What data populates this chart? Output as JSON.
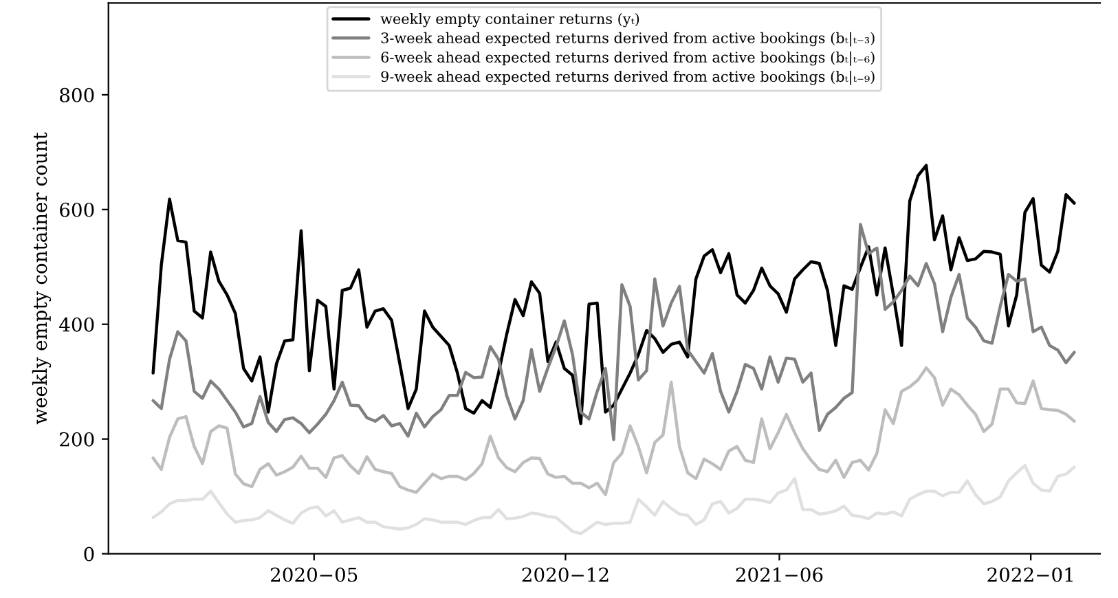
{
  "chart_data": {
    "type": "line",
    "ylabel": "weekly empty container count",
    "x": [
      "2019-12-16",
      "2019-12-23",
      "2019-12-30",
      "2020-01-06",
      "2020-01-13",
      "2020-01-20",
      "2020-01-27",
      "2020-02-03",
      "2020-02-10",
      "2020-02-17",
      "2020-02-24",
      "2020-03-02",
      "2020-03-09",
      "2020-03-16",
      "2020-03-23",
      "2020-03-30",
      "2020-04-06",
      "2020-04-13",
      "2020-04-20",
      "2020-04-27",
      "2020-05-04",
      "2020-05-11",
      "2020-05-18",
      "2020-05-25",
      "2020-06-01",
      "2020-06-08",
      "2020-06-15",
      "2020-06-22",
      "2020-06-29",
      "2020-07-06",
      "2020-07-13",
      "2020-07-20",
      "2020-07-27",
      "2020-08-03",
      "2020-08-10",
      "2020-08-17",
      "2020-08-24",
      "2020-08-31",
      "2020-09-07",
      "2020-09-14",
      "2020-09-21",
      "2020-09-28",
      "2020-10-05",
      "2020-10-12",
      "2020-10-19",
      "2020-10-26",
      "2020-11-02",
      "2020-11-09",
      "2020-11-16",
      "2020-11-23",
      "2020-11-30",
      "2020-12-07",
      "2020-12-14",
      "2020-12-21",
      "2020-12-28",
      "2021-01-04",
      "2021-01-11",
      "2021-01-18",
      "2021-01-25",
      "2021-02-01",
      "2021-02-08",
      "2021-02-15",
      "2021-02-22",
      "2021-03-01",
      "2021-03-08",
      "2021-03-15",
      "2021-03-22",
      "2021-03-29",
      "2021-04-05",
      "2021-04-12",
      "2021-04-19",
      "2021-04-26",
      "2021-05-03",
      "2021-05-10",
      "2021-05-17",
      "2021-05-24",
      "2021-05-31",
      "2021-06-07",
      "2021-06-14",
      "2021-06-21",
      "2021-06-28",
      "2021-07-05",
      "2021-07-12",
      "2021-07-19",
      "2021-07-26",
      "2021-08-02",
      "2021-08-09",
      "2021-08-16",
      "2021-08-23",
      "2021-08-30",
      "2021-09-06",
      "2021-09-13",
      "2021-09-20",
      "2021-09-27",
      "2021-10-04",
      "2021-10-11",
      "2021-10-18",
      "2021-10-25",
      "2021-11-01",
      "2021-11-08",
      "2021-11-15",
      "2021-11-22",
      "2021-11-29",
      "2021-12-06",
      "2021-12-13",
      "2021-12-20",
      "2021-12-27",
      "2022-01-03",
      "2022-01-10",
      "2022-01-17",
      "2022-01-24",
      "2022-01-31",
      "2022-02-07"
    ],
    "series": [
      {
        "name": "weekly empty container returns (yₜ)",
        "color": "#000000",
        "values": [
          315,
          503,
          618,
          546,
          543,
          423,
          411,
          526,
          475,
          451,
          419,
          323,
          301,
          343,
          247,
          331,
          371,
          373,
          563,
          319,
          442,
          431,
          287,
          459,
          463,
          495,
          395,
          423,
          427,
          407,
          331,
          253,
          287,
          423,
          395,
          379,
          363,
          315,
          253,
          245,
          267,
          255,
          315,
          383,
          443,
          415,
          474,
          454,
          335,
          369,
          323,
          311,
          227,
          435,
          437,
          247,
          259,
          287,
          315,
          347,
          389,
          375,
          351,
          365,
          369,
          343,
          479,
          519,
          530,
          490,
          523,
          451,
          437,
          459,
          498,
          467,
          453,
          421,
          479,
          495,
          509,
          506,
          459,
          363,
          467,
          461,
          499,
          535,
          451,
          533,
          451,
          363,
          615,
          659,
          677,
          547,
          589,
          495,
          551,
          511,
          514,
          527,
          526,
          522,
          397,
          451,
          595,
          619,
          503,
          491,
          527,
          626,
          611
        ]
      },
      {
        "name": "3-week ahead expected returns derived from active bookings (bₜ|ₜ₋₃)",
        "color": "#808080",
        "values": [
          267,
          253,
          339,
          387,
          371,
          283,
          271,
          301,
          287,
          267,
          247,
          221,
          227,
          274,
          229,
          213,
          234,
          237,
          227,
          211,
          226,
          243,
          267,
          299,
          259,
          258,
          237,
          231,
          241,
          223,
          227,
          205,
          245,
          221,
          239,
          251,
          276,
          276,
          316,
          307,
          308,
          361,
          339,
          275,
          235,
          267,
          356,
          283,
          324,
          361,
          406,
          347,
          247,
          235,
          283,
          323,
          199,
          469,
          431,
          303,
          319,
          479,
          397,
          437,
          466,
          355,
          335,
          315,
          349,
          283,
          247,
          283,
          330,
          323,
          287,
          343,
          299,
          341,
          339,
          299,
          315,
          215,
          243,
          255,
          271,
          281,
          574,
          523,
          533,
          426,
          439,
          459,
          484,
          467,
          506,
          471,
          387,
          447,
          487,
          411,
          395,
          371,
          367,
          431,
          487,
          475,
          479,
          387,
          395,
          363,
          355,
          333,
          351
        ]
      },
      {
        "name": "6-week ahead expected returns derived from active bookings (bₜ|ₜ₋₆)",
        "color": "#bdbdbd",
        "values": [
          167,
          147,
          203,
          235,
          239,
          187,
          157,
          213,
          223,
          219,
          139,
          122,
          117,
          147,
          157,
          137,
          143,
          151,
          170,
          149,
          149,
          133,
          167,
          171,
          153,
          140,
          169,
          147,
          143,
          140,
          117,
          111,
          107,
          123,
          139,
          131,
          135,
          135,
          129,
          140,
          157,
          205,
          167,
          150,
          143,
          159,
          167,
          166,
          139,
          133,
          135,
          123,
          123,
          115,
          123,
          103,
          159,
          175,
          223,
          187,
          141,
          194,
          207,
          299,
          187,
          141,
          131,
          165,
          157,
          147,
          179,
          187,
          163,
          159,
          235,
          183,
          211,
          243,
          211,
          183,
          163,
          147,
          143,
          163,
          133,
          159,
          163,
          146,
          175,
          251,
          227,
          283,
          291,
          303,
          324,
          307,
          259,
          287,
          277,
          259,
          243,
          213,
          226,
          287,
          287,
          263,
          262,
          301,
          253,
          251,
          250,
          243,
          231
        ]
      },
      {
        "name": "9-week ahead expected returns derived from active bookings (bₜ|ₜ₋₉)",
        "color": "#e0e0e0",
        "values": [
          63,
          73,
          87,
          93,
          93,
          95,
          95,
          109,
          89,
          69,
          55,
          58,
          59,
          63,
          75,
          67,
          59,
          53,
          71,
          79,
          82,
          66,
          75,
          55,
          59,
          63,
          55,
          55,
          47,
          45,
          43,
          45,
          51,
          61,
          59,
          55,
          55,
          55,
          51,
          58,
          63,
          63,
          77,
          61,
          62,
          65,
          71,
          69,
          65,
          63,
          51,
          39,
          35,
          45,
          55,
          51,
          53,
          53,
          55,
          95,
          82,
          67,
          91,
          79,
          69,
          67,
          51,
          59,
          87,
          91,
          71,
          79,
          95,
          95,
          93,
          89,
          106,
          111,
          131,
          77,
          77,
          69,
          71,
          75,
          83,
          67,
          65,
          61,
          71,
          69,
          73,
          66,
          95,
          103,
          109,
          109,
          101,
          107,
          107,
          127,
          103,
          87,
          91,
          99,
          127,
          141,
          154,
          123,
          111,
          109,
          135,
          139,
          151
        ]
      }
    ],
    "xlim": [
      "2019-11-08",
      "2022-03-01"
    ],
    "xticks": [
      {
        "value": "2020-05-01",
        "label": "2020−05"
      },
      {
        "value": "2020-12-01",
        "label": "2020−12"
      },
      {
        "value": "2021-06-01",
        "label": "2021−06"
      },
      {
        "value": "2022-01-01",
        "label": "2022−01"
      }
    ],
    "ylim": [
      0,
      960
    ],
    "yticks": [
      0,
      200,
      400,
      600,
      800
    ],
    "grid": false,
    "legend": "top",
    "marker": "none",
    "line_style": "solid"
  }
}
